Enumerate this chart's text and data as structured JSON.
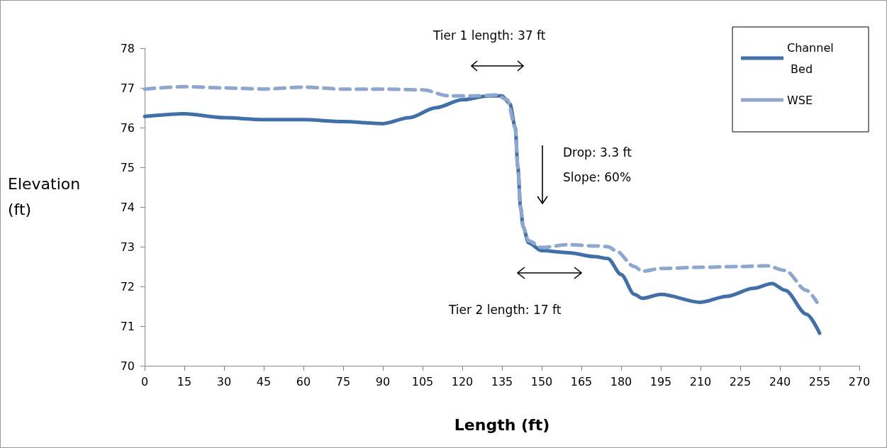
{
  "chart_data": {
    "type": "line",
    "xlabel": "Length (ft)",
    "ylabel": "Elevation (ft)",
    "xlim": [
      0,
      270
    ],
    "xticks": [
      0,
      15,
      30,
      45,
      60,
      75,
      90,
      105,
      120,
      135,
      150,
      165,
      180,
      195,
      210,
      225,
      240,
      255,
      270
    ],
    "ylim": [
      70,
      78
    ],
    "yticks": [
      70,
      71,
      72,
      73,
      74,
      75,
      76,
      77,
      78
    ],
    "grid": false,
    "legend": "top right",
    "marker": "none",
    "series": [
      {
        "name": "Channel Bed",
        "color": "#4170a8",
        "line_style": "solid",
        "x": [
          0,
          15,
          30,
          45,
          60,
          75,
          90,
          100,
          110,
          120,
          130,
          135,
          138,
          140,
          141,
          142,
          143,
          145,
          150,
          160,
          170,
          175,
          180,
          185,
          188,
          195,
          210,
          220,
          230,
          237,
          242,
          250,
          255
        ],
        "values": [
          76.28,
          76.35,
          76.25,
          76.2,
          76.2,
          76.15,
          76.1,
          76.25,
          76.5,
          76.7,
          76.8,
          76.8,
          76.6,
          76.0,
          75.0,
          74.0,
          73.5,
          73.1,
          72.9,
          72.85,
          72.75,
          72.7,
          72.3,
          71.8,
          71.7,
          71.8,
          71.6,
          71.75,
          71.95,
          72.07,
          71.9,
          71.3,
          70.82
        ]
      },
      {
        "name": "WSE",
        "color": "#8ea7cf",
        "line_style": "dashed",
        "x": [
          0,
          15,
          30,
          45,
          60,
          75,
          90,
          105,
          115,
          125,
          133,
          137,
          140,
          141,
          142,
          143,
          145,
          150,
          160,
          170,
          175,
          178,
          185,
          188,
          195,
          210,
          225,
          235,
          242,
          250,
          254
        ],
        "values": [
          76.97,
          77.03,
          77.0,
          76.97,
          77.02,
          76.97,
          76.97,
          76.95,
          76.8,
          76.8,
          76.82,
          76.7,
          76.0,
          75.0,
          74.0,
          73.5,
          73.15,
          72.98,
          73.05,
          73.02,
          73.0,
          72.9,
          72.5,
          72.38,
          72.45,
          72.48,
          72.5,
          72.52,
          72.4,
          71.9,
          71.6
        ]
      }
    ],
    "annotations": [
      "Tier 1 length: 37 ft",
      "Drop: 3.3 ft",
      "Slope: 60%",
      "Tier 2 length: 17 ft"
    ]
  }
}
